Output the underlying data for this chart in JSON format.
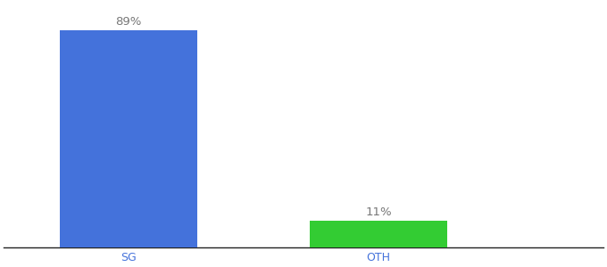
{
  "categories": [
    "SG",
    "OTH"
  ],
  "values": [
    89,
    11
  ],
  "bar_colors": [
    "#4472db",
    "#33cc33"
  ],
  "label_texts": [
    "89%",
    "11%"
  ],
  "background_color": "#ffffff",
  "ylim": [
    0,
    100
  ],
  "bar_width": 0.55,
  "label_fontsize": 9.5,
  "tick_fontsize": 9,
  "tick_color": "#4472db",
  "label_color": "#777777",
  "axis_line_color": "#222222",
  "figsize": [
    6.8,
    3.0
  ],
  "dpi": 100,
  "x_positions": [
    1,
    2
  ],
  "xlim": [
    0.5,
    2.9
  ]
}
